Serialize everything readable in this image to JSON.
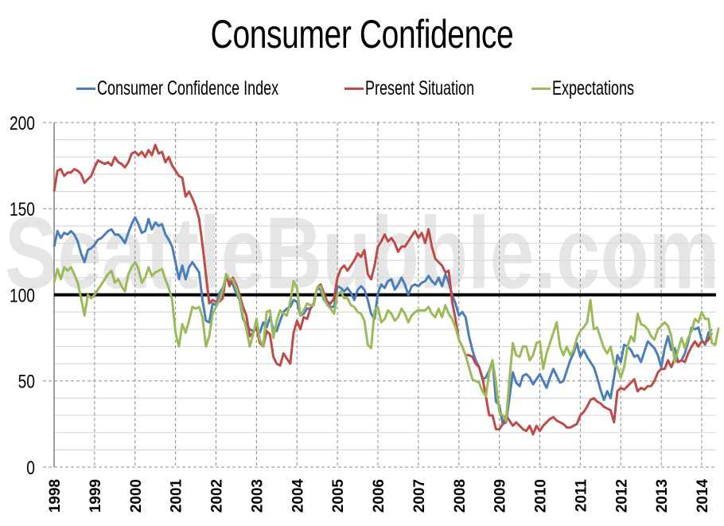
{
  "chart_data": {
    "type": "line",
    "title": "Consumer Confidence",
    "xlabel": "",
    "ylabel": "",
    "ylim": [
      0,
      200
    ],
    "yticks": [
      "0",
      "50",
      "100",
      "150",
      "200"
    ],
    "xticks": [
      "1998",
      "1999",
      "2000",
      "2001",
      "2002",
      "2003",
      "2004",
      "2005",
      "2006",
      "2007",
      "2008",
      "2009",
      "2010",
      "2011",
      "2012",
      "2013",
      "2014"
    ],
    "xrange": [
      1998,
      2014
    ],
    "grid": true,
    "legend_position": "top",
    "reference_line": {
      "value": 100,
      "color": "#000000"
    },
    "watermark": "SeattleBubble.com",
    "frequency": "monthly",
    "start": "1998-01",
    "series": [
      {
        "name": "Consumer Confidence Index",
        "color": "#4a7ebb",
        "values": [
          128,
          137,
          133,
          136,
          135,
          137,
          135,
          131,
          124,
          119,
          126,
          127,
          129,
          132,
          133,
          135,
          137,
          138,
          135,
          135,
          133,
          130,
          136,
          141,
          145,
          141,
          136,
          137,
          144,
          138,
          142,
          140,
          141,
          135,
          132,
          128,
          119,
          109,
          117,
          109,
          116,
          119,
          116,
          113,
          97,
          85,
          84,
          95,
          94,
          101,
          104,
          110,
          108,
          106,
          101,
          97,
          86,
          83,
          80,
          79,
          82,
          78,
          84,
          81,
          87,
          80,
          79,
          85,
          90,
          92,
          93,
          97,
          96,
          88,
          89,
          92,
          92,
          95,
          104,
          103,
          97,
          95,
          93,
          93,
          105,
          104,
          102,
          104,
          101,
          97,
          103,
          105,
          103,
          97,
          89,
          86,
          101,
          106,
          104,
          108,
          109,
          103,
          106,
          110,
          106,
          100,
          105,
          106,
          105,
          107,
          108,
          111,
          108,
          106,
          110,
          105,
          112,
          107,
          100,
          95,
          88,
          90,
          87,
          76,
          68,
          62,
          58,
          51,
          52,
          56,
          62,
          38,
          36,
          25,
          26,
          40,
          55,
          49,
          47,
          53,
          54,
          52,
          48,
          51,
          54,
          50,
          46,
          52,
          57,
          53,
          49,
          50,
          56,
          62,
          66,
          72,
          64,
          68,
          64,
          61,
          58,
          52,
          45,
          39,
          44,
          40,
          52,
          65,
          61,
          71,
          70,
          68,
          64,
          65,
          61,
          67,
          73,
          71,
          69,
          65,
          58,
          69,
          76,
          68,
          69,
          61,
          62,
          66,
          73,
          81,
          80,
          81,
          74,
          71,
          78,
          80
        ]
      },
      {
        "name": "Present Situation",
        "color": "#be4b48",
        "values": [
          160,
          172,
          173,
          169,
          171,
          171,
          173,
          172,
          170,
          165,
          167,
          169,
          174,
          178,
          177,
          176,
          177,
          175,
          180,
          177,
          176,
          174,
          177,
          182,
          183,
          181,
          183,
          180,
          184,
          181,
          187,
          182,
          183,
          177,
          180,
          175,
          172,
          169,
          168,
          157,
          160,
          156,
          151,
          144,
          129,
          112,
          95,
          97,
          96,
          96,
          98,
          112,
          105,
          110,
          106,
          100,
          93,
          88,
          76,
          78,
          81,
          72,
          70,
          79,
          77,
          64,
          60,
          59,
          66,
          63,
          60,
          78,
          85,
          80,
          87,
          86,
          92,
          95,
          104,
          106,
          101,
          96,
          95,
          98,
          110,
          115,
          117,
          114,
          117,
          120,
          124,
          122,
          126,
          112,
          109,
          117,
          128,
          131,
          135,
          131,
          133,
          130,
          125,
          128,
          128,
          131,
          134,
          137,
          133,
          136,
          130,
          138,
          128,
          121,
          119,
          117,
          113,
          114,
          96,
          86,
          74,
          70,
          65,
          65,
          64,
          60,
          58,
          52,
          41,
          30,
          30,
          22,
          22,
          25,
          30,
          27,
          24,
          26,
          24,
          22,
          21,
          24,
          19,
          24,
          21,
          24,
          26,
          28,
          29,
          27,
          26,
          25,
          23,
          23,
          24,
          25,
          30,
          32,
          35,
          39,
          40,
          38,
          37,
          35,
          34,
          33,
          26,
          44,
          46,
          45,
          47,
          49,
          51,
          44,
          46,
          45,
          47,
          47,
          50,
          55,
          57,
          57,
          62,
          58,
          63,
          61,
          62,
          61,
          66,
          70,
          73,
          70,
          73,
          72,
          74,
          78
        ]
      },
      {
        "name": "Expectations",
        "color": "#9bbb59",
        "values": [
          107,
          115,
          109,
          116,
          114,
          116,
          112,
          107,
          98,
          88,
          100,
          98,
          100,
          103,
          106,
          109,
          112,
          114,
          107,
          109,
          105,
          102,
          112,
          116,
          119,
          115,
          107,
          110,
          116,
          111,
          113,
          114,
          115,
          109,
          104,
          97,
          78,
          70,
          83,
          78,
          85,
          93,
          92,
          93,
          87,
          70,
          76,
          89,
          93,
          97,
          103,
          112,
          109,
          109,
          104,
          98,
          88,
          80,
          70,
          77,
          86,
          74,
          70,
          90,
          91,
          75,
          85,
          91,
          89,
          88,
          96,
          108,
          104,
          88,
          91,
          95,
          94,
          94,
          104,
          105,
          98,
          94,
          92,
          89,
          100,
          102,
          98,
          98,
          94,
          93,
          90,
          89,
          85,
          71,
          69,
          91,
          93,
          84,
          86,
          91,
          89,
          85,
          87,
          92,
          89,
          84,
          88,
          90,
          91,
          91,
          91,
          93,
          89,
          87,
          92,
          87,
          94,
          89,
          86,
          81,
          74,
          70,
          65,
          58,
          51,
          50,
          49,
          44,
          41,
          55,
          62,
          49,
          32,
          30,
          27,
          51,
          72,
          65,
          64,
          70,
          70,
          62,
          65,
          72,
          73,
          57,
          66,
          72,
          78,
          84,
          70,
          65,
          70,
          65,
          68,
          75,
          79,
          81,
          84,
          97,
          80,
          81,
          75,
          69,
          66,
          70,
          60,
          58,
          52,
          58,
          70,
          76,
          73,
          89,
          83,
          82,
          80,
          76,
          74,
          80,
          82,
          84,
          82,
          76,
          61,
          68,
          75,
          69,
          75,
          79,
          86,
          84,
          90,
          86,
          86,
          72,
          71,
          81
        ]
      }
    ]
  }
}
